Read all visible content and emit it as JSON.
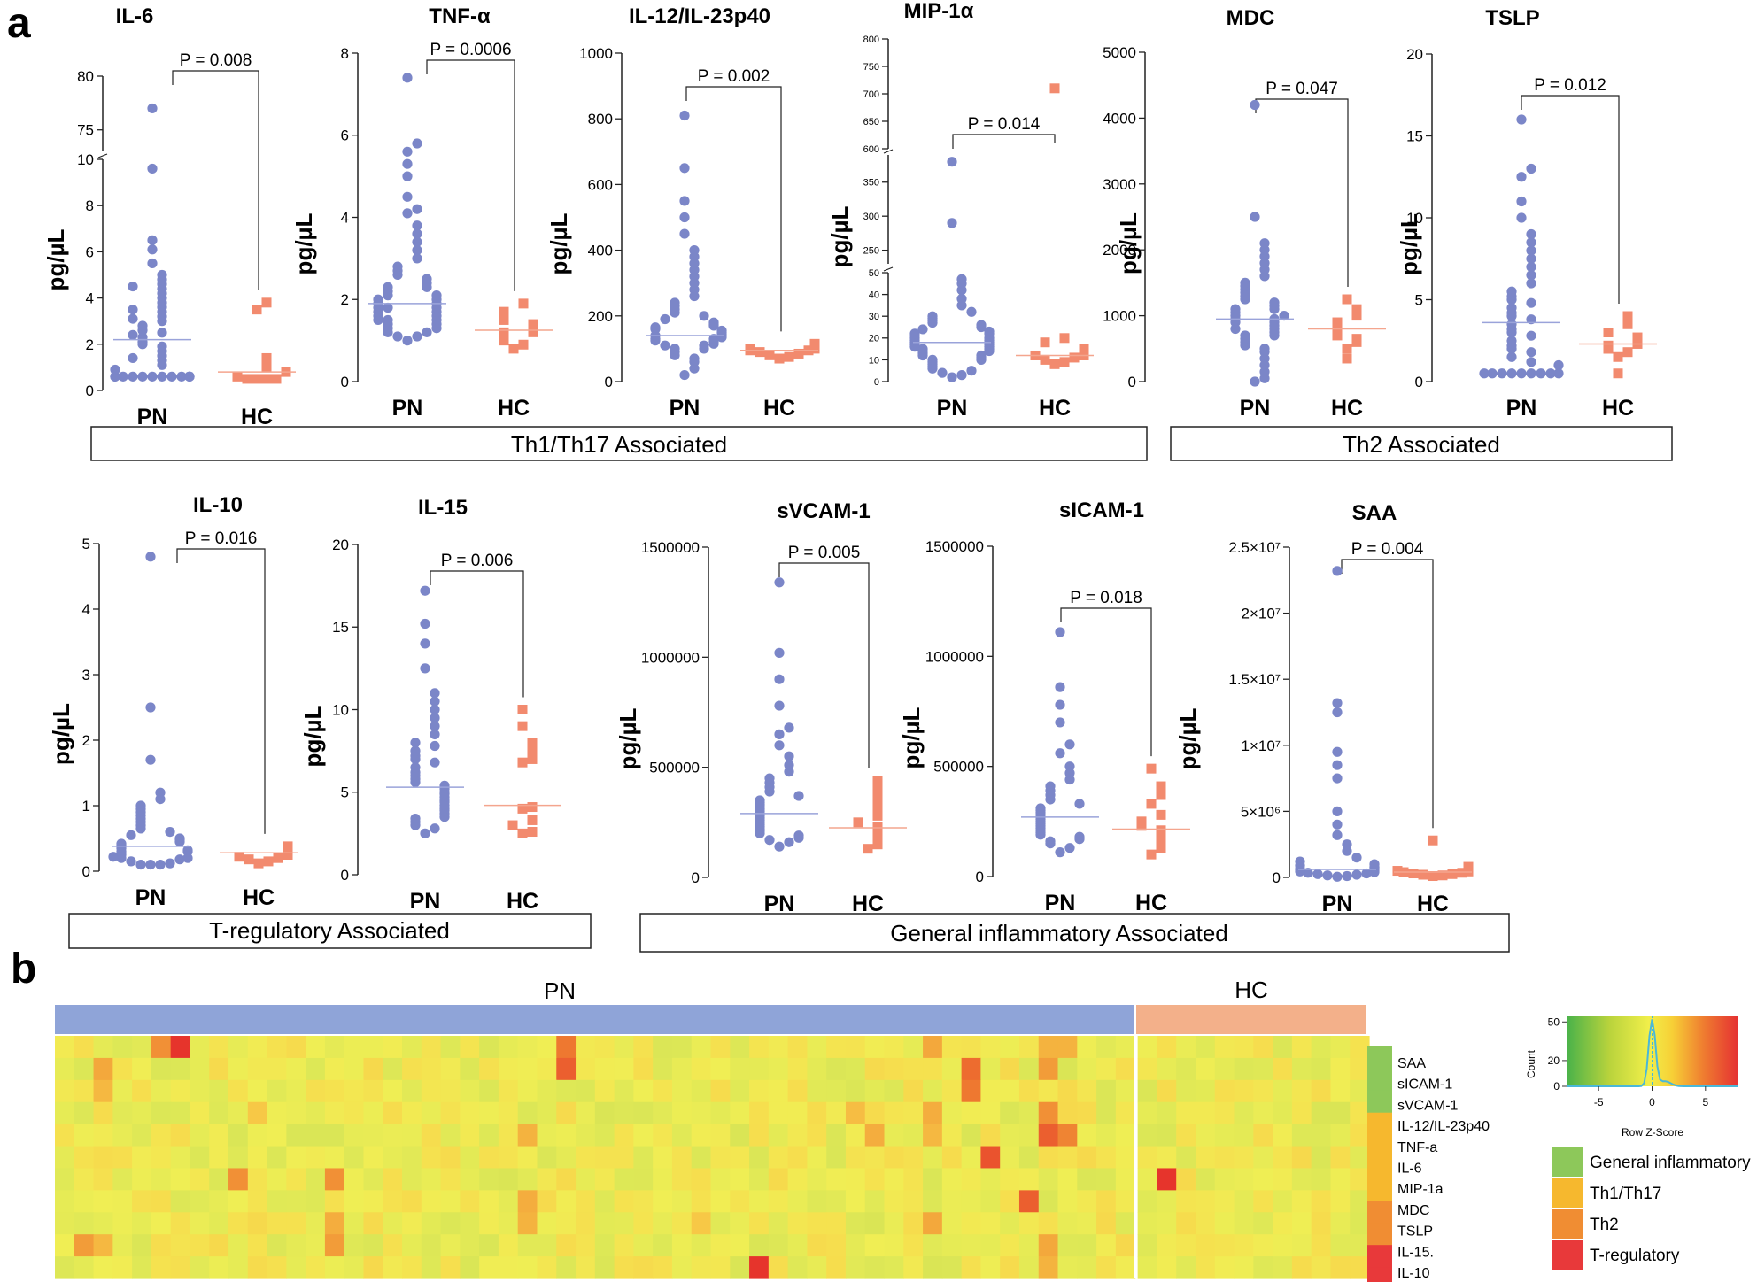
{
  "panel_a_label": "a",
  "panel_b_label": "b",
  "colors": {
    "pn": "#7b86c8",
    "hc": "#f28a6e",
    "general": "#8dc85a",
    "th1": "#f6b82e",
    "th2": "#f08d33",
    "treg": "#e8393a",
    "pn_bar": "#8fa4d8",
    "hc_bar": "#f3b08a"
  },
  "chart_data": [
    {
      "type": "scatter",
      "title": "IL-6",
      "ylabel": "pg/µL",
      "categories": [
        "PN",
        "HC"
      ],
      "p_value": "P = 0.008",
      "yticks": [
        "0",
        "2",
        "4",
        "6",
        "8",
        "10",
        "75",
        "80"
      ],
      "axis_break": [
        10,
        73
      ],
      "ylim": [
        0,
        80
      ],
      "series": [
        {
          "name": "PN",
          "median": 2.2,
          "values": [
            0.6,
            0.6,
            0.6,
            0.6,
            0.6,
            0.6,
            0.6,
            0.6,
            0.6,
            0.6,
            0.6,
            0.6,
            0.6,
            0.6,
            0.9,
            1.1,
            1.3,
            1.5,
            1.7,
            1.9,
            2.0,
            2.1,
            2.3,
            2.5,
            2.6,
            2.8,
            3.0,
            3.2,
            3.4,
            3.6,
            3.8,
            4.0,
            4.2,
            4.4,
            4.6,
            4.8,
            5.0,
            4.5,
            3.5,
            3.1,
            2.4,
            1.4,
            5.5,
            6.1,
            6.5,
            9.6,
            77
          ]
        },
        {
          "name": "HC",
          "median": 0.8,
          "values": [
            0.5,
            0.5,
            0.5,
            0.5,
            0.6,
            0.8,
            1.0,
            1.3,
            1.4,
            3.5,
            3.8
          ]
        }
      ]
    },
    {
      "type": "scatter",
      "title": "TNF-α",
      "ylabel": "pg/µL",
      "categories": [
        "PN",
        "HC"
      ],
      "p_value": "P = 0.0006",
      "yticks": [
        "0",
        "2",
        "4",
        "6",
        "8"
      ],
      "ylim": [
        0,
        8
      ],
      "series": [
        {
          "name": "PN",
          "median": 1.9,
          "values": [
            1.0,
            1.1,
            1.1,
            1.2,
            1.2,
            1.3,
            1.3,
            1.4,
            1.4,
            1.5,
            1.5,
            1.5,
            1.6,
            1.6,
            1.7,
            1.7,
            1.8,
            1.8,
            1.8,
            1.9,
            1.9,
            2.0,
            2.0,
            2.1,
            2.1,
            2.2,
            2.3,
            2.3,
            2.4,
            2.5,
            2.6,
            2.7,
            2.8,
            3.0,
            3.2,
            3.4,
            3.6,
            3.8,
            4.1,
            4.2,
            4.5,
            5.0,
            5.3,
            5.6,
            5.8,
            7.4
          ]
        },
        {
          "name": "HC",
          "median": 1.25,
          "values": [
            0.8,
            0.9,
            1.0,
            1.1,
            1.2,
            1.2,
            1.3,
            1.4,
            1.5,
            1.6,
            1.7,
            1.9
          ]
        }
      ]
    },
    {
      "type": "scatter",
      "title": "IL-12/IL-23p40",
      "ylabel": "pg/µL",
      "categories": [
        "PN",
        "HC"
      ],
      "p_value": "P = 0.002",
      "yticks": [
        "0",
        "200",
        "400",
        "600",
        "800",
        "1000"
      ],
      "ylim": [
        0,
        1000
      ],
      "series": [
        {
          "name": "PN",
          "median": 140,
          "values": [
            20,
            40,
            60,
            70,
            80,
            90,
            100,
            100,
            110,
            110,
            115,
            120,
            125,
            130,
            130,
            135,
            140,
            140,
            145,
            150,
            155,
            160,
            165,
            170,
            175,
            180,
            190,
            200,
            210,
            220,
            230,
            240,
            260,
            280,
            300,
            320,
            340,
            360,
            380,
            400,
            450,
            500,
            550,
            650,
            810
          ]
        },
        {
          "name": "HC",
          "median": 95,
          "values": [
            70,
            75,
            80,
            85,
            90,
            95,
            95,
            100,
            100,
            105,
            110,
            115
          ]
        }
      ]
    },
    {
      "type": "scatter",
      "title": "MIP-1α",
      "ylabel": "pg/µL",
      "categories": [
        "PN",
        "HC"
      ],
      "p_value": "P = 0.014",
      "yticks": [
        "0",
        "10",
        "20",
        "30",
        "40",
        "50",
        "250",
        "300",
        "350",
        "600",
        "650",
        "700",
        "750",
        "800"
      ],
      "axis_breaks": [
        [
          50,
          230
        ],
        [
          390,
          600
        ]
      ],
      "ylim": [
        0,
        800
      ],
      "series": [
        {
          "name": "PN",
          "median": 18,
          "values": [
            2,
            3,
            4,
            5,
            6,
            7,
            8,
            9,
            10,
            10,
            11,
            12,
            12,
            13,
            14,
            14,
            15,
            15,
            16,
            16,
            17,
            17,
            18,
            18,
            19,
            19,
            20,
            20,
            21,
            22,
            22,
            23,
            24,
            25,
            26,
            27,
            28,
            29,
            30,
            32,
            35,
            38,
            42,
            45,
            47,
            290,
            380
          ]
        },
        {
          "name": "HC",
          "median": 12,
          "values": [
            8,
            9,
            10,
            11,
            12,
            12,
            13,
            14,
            15,
            18,
            20,
            710
          ]
        }
      ]
    },
    {
      "type": "scatter",
      "title": "MDC",
      "ylabel": "pg/µL",
      "categories": [
        "PN",
        "HC"
      ],
      "p_value": "P = 0.047",
      "yticks": [
        "0",
        "1000",
        "2000",
        "3000",
        "4000",
        "5000"
      ],
      "ylim": [
        0,
        5000
      ],
      "series": [
        {
          "name": "PN",
          "median": 950,
          "values": [
            0,
            50,
            150,
            250,
            350,
            450,
            500,
            550,
            600,
            650,
            700,
            700,
            750,
            800,
            800,
            850,
            900,
            900,
            950,
            950,
            1000,
            1000,
            1050,
            1100,
            1100,
            1150,
            1200,
            1250,
            1300,
            1350,
            1400,
            1450,
            1500,
            1600,
            1700,
            1800,
            1900,
            2000,
            2100,
            2500,
            4200
          ]
        },
        {
          "name": "HC",
          "median": 800,
          "values": [
            350,
            500,
            600,
            650,
            700,
            750,
            800,
            850,
            900,
            1000,
            1100,
            1250
          ]
        }
      ]
    },
    {
      "type": "scatter",
      "title": "TSLP",
      "ylabel": "pg/µL",
      "categories": [
        "PN",
        "HC"
      ],
      "p_value": "P = 0.012",
      "yticks": [
        "0",
        "5",
        "10",
        "15",
        "20"
      ],
      "ylim": [
        0,
        20
      ],
      "series": [
        {
          "name": "PN",
          "median": 3.6,
          "values": [
            0.5,
            0.5,
            0.5,
            0.5,
            0.5,
            0.5,
            0.5,
            0.5,
            0.5,
            1.0,
            1.2,
            1.5,
            1.8,
            2.0,
            2.2,
            2.5,
            2.8,
            3.0,
            3.2,
            3.5,
            3.8,
            4.0,
            4.2,
            4.5,
            4.8,
            5.0,
            5.2,
            5.5,
            6.0,
            6.5,
            7.0,
            7.5,
            8.0,
            8.5,
            9.0,
            10.0,
            11.0,
            12.5,
            13.0,
            16.0
          ]
        },
        {
          "name": "HC",
          "median": 2.3,
          "values": [
            0.5,
            1.5,
            1.8,
            2.0,
            2.2,
            2.3,
            2.5,
            2.7,
            3.0,
            3.5,
            4.0
          ]
        }
      ]
    },
    {
      "type": "scatter",
      "title": "IL-10",
      "ylabel": "pg/µL",
      "categories": [
        "PN",
        "HC"
      ],
      "p_value": "P = 0.016",
      "yticks": [
        "0",
        "1",
        "2",
        "3",
        "4",
        "5"
      ],
      "ylim": [
        0,
        5
      ],
      "series": [
        {
          "name": "PN",
          "median": 0.38,
          "values": [
            0.1,
            0.1,
            0.1,
            0.12,
            0.15,
            0.18,
            0.2,
            0.2,
            0.22,
            0.25,
            0.28,
            0.3,
            0.3,
            0.32,
            0.35,
            0.38,
            0.4,
            0.42,
            0.45,
            0.48,
            0.5,
            0.55,
            0.6,
            0.65,
            0.7,
            0.75,
            0.8,
            0.85,
            0.9,
            0.95,
            1.0,
            1.1,
            1.2,
            1.7,
            2.5,
            4.8
          ]
        },
        {
          "name": "HC",
          "median": 0.28,
          "values": [
            0.12,
            0.15,
            0.18,
            0.2,
            0.22,
            0.25,
            0.28,
            0.3,
            0.32,
            0.35,
            0.38
          ]
        }
      ]
    },
    {
      "type": "scatter",
      "title": "IL-15",
      "ylabel": "pg/µL",
      "categories": [
        "PN",
        "HC"
      ],
      "p_value": "P = 0.006",
      "yticks": [
        "0",
        "5",
        "10",
        "15",
        "20"
      ],
      "ylim": [
        0,
        20
      ],
      "series": [
        {
          "name": "PN",
          "median": 5.3,
          "values": [
            2.5,
            2.8,
            3.0,
            3.2,
            3.4,
            3.5,
            3.7,
            3.9,
            4.0,
            4.2,
            4.4,
            4.5,
            4.7,
            4.9,
            5.0,
            5.2,
            5.4,
            5.6,
            5.8,
            6.0,
            6.2,
            6.5,
            6.8,
            7.0,
            7.2,
            7.5,
            7.8,
            8.0,
            8.5,
            9.0,
            9.5,
            10.0,
            10.5,
            11.0,
            12.5,
            14.0,
            15.2,
            17.2
          ]
        },
        {
          "name": "HC",
          "median": 4.2,
          "values": [
            2.5,
            2.6,
            3.0,
            3.3,
            4.0,
            4.1,
            6.8,
            7.0,
            7.5,
            8.0,
            9.0,
            10.0
          ]
        }
      ]
    },
    {
      "type": "scatter",
      "title": "sVCAM-1",
      "ylabel": "pg/µL",
      "categories": [
        "PN",
        "HC"
      ],
      "p_value": "P = 0.005",
      "yticks": [
        "0",
        "500000",
        "1000000",
        "1500000"
      ],
      "ylim": [
        0,
        1500000
      ],
      "series": [
        {
          "name": "PN",
          "median": 290000,
          "values": [
            140000,
            160000,
            170000,
            180000,
            190000,
            200000,
            210000,
            220000,
            230000,
            240000,
            250000,
            260000,
            270000,
            280000,
            290000,
            300000,
            310000,
            320000,
            330000,
            340000,
            350000,
            370000,
            390000,
            410000,
            430000,
            450000,
            480000,
            510000,
            550000,
            600000,
            650000,
            680000,
            780000,
            900000,
            1020000,
            1340000
          ]
        },
        {
          "name": "HC",
          "median": 225000,
          "values": [
            130000,
            150000,
            180000,
            210000,
            230000,
            250000,
            280000,
            300000,
            330000,
            370000,
            410000,
            440000
          ]
        }
      ]
    },
    {
      "type": "scatter",
      "title": "sICAM-1",
      "ylabel": "pg/µL",
      "categories": [
        "PN",
        "HC"
      ],
      "p_value": "P = 0.018",
      "yticks": [
        "0",
        "500000",
        "1000000",
        "1500000"
      ],
      "ylim": [
        0,
        1500000
      ],
      "series": [
        {
          "name": "PN",
          "median": 270000,
          "values": [
            110000,
            130000,
            150000,
            160000,
            170000,
            180000,
            190000,
            200000,
            210000,
            220000,
            230000,
            240000,
            250000,
            260000,
            270000,
            280000,
            290000,
            300000,
            310000,
            330000,
            350000,
            370000,
            390000,
            410000,
            440000,
            470000,
            500000,
            560000,
            600000,
            700000,
            780000,
            860000,
            1110000
          ]
        },
        {
          "name": "HC",
          "median": 215000,
          "values": [
            100000,
            130000,
            160000,
            190000,
            210000,
            230000,
            250000,
            280000,
            330000,
            370000,
            410000,
            490000
          ]
        }
      ]
    },
    {
      "type": "scatter",
      "title": "SAA",
      "ylabel": "pg/µL",
      "categories": [
        "PN",
        "HC"
      ],
      "p_value": "P = 0.004",
      "yticks": [
        "0",
        "5×10⁶",
        "1×10⁷",
        "1.5×10⁷",
        "2×10⁷",
        "2.5×10⁷"
      ],
      "ylim": [
        0,
        25000000
      ],
      "series": [
        {
          "name": "PN",
          "median": 600000,
          "values": [
            50000,
            100000,
            150000,
            200000,
            250000,
            300000,
            350000,
            400000,
            450000,
            500000,
            550000,
            600000,
            650000,
            700000,
            750000,
            800000,
            900000,
            1000000,
            1200000,
            1500000,
            2000000,
            2500000,
            3200000,
            4000000,
            5000000,
            7500000,
            8500000,
            9500000,
            12500000,
            13200000,
            23200000
          ]
        },
        {
          "name": "HC",
          "median": 400000,
          "values": [
            100000,
            150000,
            200000,
            250000,
            300000,
            350000,
            400000,
            450000,
            500000,
            600000,
            800000,
            2800000
          ]
        }
      ]
    }
  ],
  "group_boxes": {
    "th1_th17": "Th1/Th17 Associated",
    "th2": "Th2 Associated",
    "treg": "T-regulatory Associated",
    "general": "General inflammatory Associated"
  },
  "heatmap": {
    "top_labels": {
      "pn": "PN",
      "hc": "HC"
    },
    "n_pn": 56,
    "n_hc": 12,
    "rows": [
      "SAA",
      "sICAM-1",
      "sVCAM-1",
      "IL-12/IL-23p40",
      "TNF-a",
      "IL-6",
      "MIP-1a",
      "MDC",
      "TSLP",
      "IL-15.",
      "IL-10"
    ],
    "row_groups": [
      "general",
      "general",
      "general",
      "th1",
      "th1",
      "th1",
      "th1",
      "th2",
      "th2",
      "treg",
      "treg"
    ],
    "hotspots": [
      [
        0,
        6,
        3.5
      ],
      [
        0,
        5,
        2.0
      ],
      [
        0,
        26,
        2.4
      ],
      [
        0,
        45,
        1.6
      ],
      [
        0,
        51,
        1.4
      ],
      [
        0,
        52,
        1.4
      ],
      [
        1,
        26,
        2.8
      ],
      [
        1,
        2,
        1.6
      ],
      [
        1,
        47,
        2.6
      ],
      [
        1,
        51,
        1.8
      ],
      [
        2,
        47,
        2.4
      ],
      [
        2,
        2,
        1.3
      ],
      [
        3,
        10,
        1.0
      ],
      [
        3,
        45,
        1.5
      ],
      [
        3,
        51,
        2.0
      ],
      [
        3,
        41,
        1.2
      ],
      [
        4,
        24,
        1.4
      ],
      [
        4,
        52,
        2.2
      ],
      [
        4,
        42,
        1.5
      ],
      [
        4,
        45,
        1.3
      ],
      [
        4,
        51,
        2.8
      ],
      [
        5,
        48,
        3.0
      ],
      [
        6,
        9,
        2.0
      ],
      [
        6,
        14,
        2.0
      ],
      [
        6,
        57,
        3.5
      ],
      [
        7,
        50,
        2.8
      ],
      [
        7,
        24,
        1.5
      ],
      [
        8,
        14,
        1.5
      ],
      [
        8,
        45,
        1.6
      ],
      [
        8,
        33,
        1.0
      ],
      [
        8,
        24,
        1.4
      ],
      [
        9,
        1,
        1.8
      ],
      [
        9,
        14,
        1.8
      ],
      [
        9,
        2,
        1.3
      ],
      [
        9,
        51,
        1.6
      ],
      [
        10,
        36,
        3.5
      ],
      [
        10,
        51,
        1.4
      ]
    ],
    "legend_items": [
      "General inflammatory",
      "Th1/Th17",
      "Th2",
      "T-regulatory"
    ],
    "key": {
      "title": "Row Z-Score",
      "count_label": "Count",
      "xticks": [
        "-5",
        "0",
        "5"
      ],
      "yticks": [
        "0",
        "20",
        "50"
      ],
      "range": [
        -8,
        8
      ]
    }
  }
}
